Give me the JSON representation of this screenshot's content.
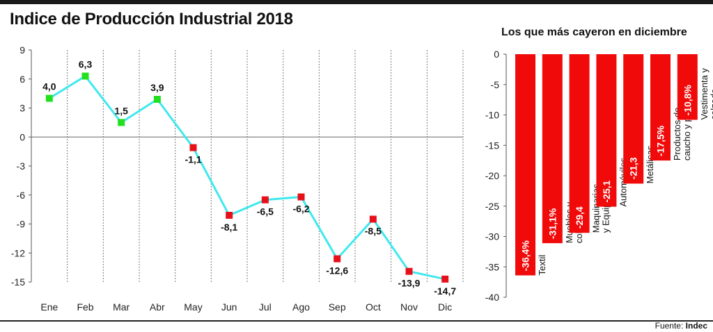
{
  "header": {
    "title": "Indice de Producción Industrial 2018",
    "subtitle": "Los que más cayeron en diciembre"
  },
  "footer": {
    "source_prefix": "Fuente:",
    "source_name": "Indec"
  },
  "colors": {
    "line": "#3fe8ee",
    "positive_marker": "#22e01f",
    "negative_marker": "#e6101a",
    "bar": "#f00a0a"
  },
  "chart_data": [
    {
      "type": "line",
      "title": "Indice de Producción Industrial 2018",
      "categories": [
        "Ene",
        "Feb",
        "Mar",
        "Abr",
        "May",
        "Jun",
        "Jul",
        "Ago",
        "Sep",
        "Oct",
        "Nov",
        "Dic"
      ],
      "values": [
        4.0,
        6.3,
        1.5,
        3.9,
        -1.1,
        -8.1,
        -6.5,
        -6.2,
        -12.6,
        -8.5,
        -13.9,
        -14.7
      ],
      "labels": [
        "4,0",
        "6,3",
        "1,5",
        "3,9",
        "-1,1",
        "-8,1",
        "-6,5",
        "-6,2",
        "-12,6",
        "-8,5",
        "-13,9",
        "-14,7"
      ],
      "yticks": [
        9,
        6,
        3,
        0,
        -3,
        -6,
        -9,
        -12,
        -15
      ],
      "ytick_labels": [
        "9",
        "6",
        "3",
        "0",
        "-3",
        "-6",
        "-9",
        "-12",
        "-15"
      ],
      "ylim": [
        -15,
        9
      ],
      "grid": "vertical-dotted"
    },
    {
      "type": "bar",
      "title": "Los que más cayeron en diciembre",
      "categories": [
        [
          "Textil"
        ],
        [
          "Muebles y",
          "colchones"
        ],
        [
          "Maquinarias",
          "y Equipos"
        ],
        [
          "Automóviles"
        ],
        [
          "Metálicas"
        ],
        [
          "Productos de",
          "caucho y plástico"
        ],
        [
          "Vestimenta y",
          "calzado"
        ]
      ],
      "values": [
        -36.4,
        -31.1,
        -29.4,
        -25.1,
        -21.3,
        -17.5,
        -10.8
      ],
      "labels": [
        "-36,4%",
        "-31,1%",
        "-29,4",
        "-25,1",
        "-21,3",
        "-17,5%",
        "-10,8%"
      ],
      "yticks": [
        0,
        -5,
        -10,
        -15,
        -20,
        -25,
        -30,
        -35,
        -40
      ],
      "ytick_labels": [
        "0",
        "-5",
        "-10",
        "-15",
        "-20",
        "-25",
        "-30",
        "-35",
        "-40"
      ],
      "ylim": [
        -40,
        0
      ]
    }
  ]
}
